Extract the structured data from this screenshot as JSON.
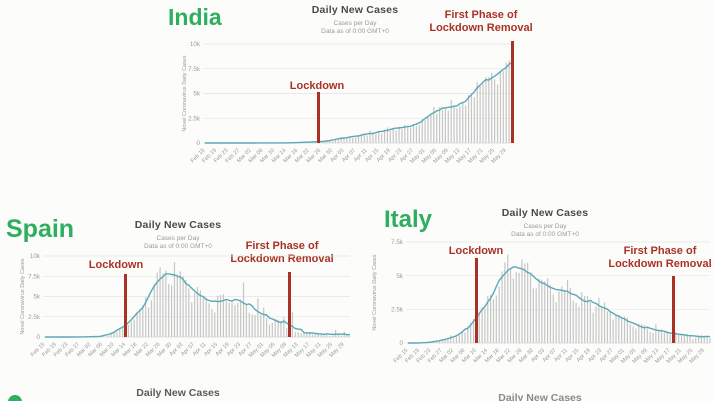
{
  "colors": {
    "country_green": "#2eae5f",
    "annotation_red": "#a93226",
    "trend_line": "#5ba8b6",
    "bars": "#c6c6c6",
    "title_text": "#4a4a4a",
    "subtitle_text": "#9a9a9a",
    "axis_text": "#9b9b9b",
    "gridline": "#e5e5e5",
    "baseline": "#d8d8d8",
    "background": "#fcfcfa"
  },
  "partial_row": {
    "left_title": "Daily New Cases",
    "right_title": "Daily New Cases"
  },
  "chart_data": [
    {
      "type": "bar",
      "country": "India",
      "title": "Daily New Cases",
      "subtitle1": "Cases per Day",
      "subtitle2": "Data as of 0:00 GMT+0",
      "ylabel": "Novel Coronavirus Daily Cases",
      "ylim": [
        0,
        10000
      ],
      "yticks": [
        {
          "v": 10000,
          "label": "10k"
        },
        {
          "v": 7500,
          "label": "7.5k"
        },
        {
          "v": 5000,
          "label": "5k"
        },
        {
          "v": 2500,
          "label": "2.5k"
        },
        {
          "v": 0,
          "label": "0"
        }
      ],
      "xtick_step": 4,
      "xtick_labels": [
        "Feb 15",
        "Feb 19",
        "Feb 23",
        "Feb 27",
        "Mar 02",
        "Mar 06",
        "Mar 10",
        "Mar 14",
        "Mar 18",
        "Mar 22",
        "Mar 26",
        "Mar 30",
        "Apr 03",
        "Apr 07",
        "Apr 11",
        "Apr 15",
        "Apr 19",
        "Apr 23",
        "Apr 27",
        "May 01",
        "May 05",
        "May 09",
        "May 13",
        "May 17",
        "May 21",
        "May 25",
        "May 29"
      ],
      "trend": "7-day moving average",
      "values": [
        0,
        0,
        0,
        0,
        0,
        0,
        0,
        0,
        0,
        0,
        0,
        0,
        0,
        0,
        0,
        3,
        2,
        23,
        2,
        1,
        3,
        5,
        5,
        12,
        8,
        11,
        8,
        20,
        13,
        12,
        15,
        24,
        26,
        60,
        86,
        76,
        102,
        106,
        88,
        121,
        160,
        188,
        140,
        227,
        146,
        437,
        336,
        601,
        579,
        609,
        567,
        508,
        565,
        813,
        871,
        854,
        758,
        1243,
        1031,
        886,
        1061,
        922,
        1371,
        1580,
        1239,
        1537,
        1292,
        1667,
        1408,
        1835,
        1607,
        1561,
        1902,
        1702,
        1801,
        2396,
        2293,
        2567,
        2952,
        3656,
        2971,
        3602,
        3344,
        3563,
        3277,
        4353,
        3604,
        3525,
        3722,
        3967,
        3787,
        4864,
        5050,
        4628,
        6154,
        5720,
        6023,
        6654,
        6665,
        7113,
        6414,
        5907,
        7246,
        7254,
        8138,
        8364,
        8789
      ],
      "annotations": [
        {
          "line1": "Lockdown",
          "line2": "",
          "day_index": 39
        },
        {
          "line1": "First Phase of",
          "line2": "Lockdown Removal",
          "day_index": 106
        }
      ]
    },
    {
      "type": "bar",
      "country": "Spain",
      "title": "Daily New Cases",
      "subtitle1": "Cases per Day",
      "subtitle2": "Data as of 0:00 GMT+0",
      "ylabel": "Novel Coronavirus Daily Cases",
      "ylim": [
        0,
        10000
      ],
      "yticks": [
        {
          "v": 10000,
          "label": "10k"
        },
        {
          "v": 7500,
          "label": "7.5k"
        },
        {
          "v": 5000,
          "label": "5k"
        },
        {
          "v": 2500,
          "label": "2.5k"
        },
        {
          "v": 0,
          "label": "0"
        }
      ],
      "xtick_step": 4,
      "xtick_labels": [
        "Feb 15",
        "Feb 19",
        "Feb 23",
        "Feb 27",
        "Mar 02",
        "Mar 06",
        "Mar 10",
        "Mar 14",
        "Mar 18",
        "Mar 22",
        "Mar 26",
        "Mar 30",
        "Apr 03",
        "Apr 07",
        "Apr 11",
        "Apr 15",
        "Apr 19",
        "Apr 23",
        "Apr 27",
        "May 01",
        "May 05",
        "May 09",
        "May 13",
        "May 17",
        "May 21",
        "May 25",
        "May 29"
      ],
      "trend": "7-day moving average",
      "values": [
        0,
        0,
        0,
        0,
        0,
        0,
        0,
        0,
        0,
        0,
        4,
        7,
        11,
        17,
        13,
        20,
        36,
        31,
        61,
        39,
        133,
        49,
        171,
        557,
        615,
        600,
        986,
        1095,
        1884,
        1515,
        1902,
        2162,
        2943,
        3431,
        3892,
        4946,
        3646,
        4517,
        6584,
        7937,
        8578,
        7871,
        8189,
        6549,
        6398,
        9222,
        7719,
        8102,
        7472,
        7026,
        6023,
        4273,
        5478,
        6180,
        5756,
        5051,
        4830,
        4167,
        3477,
        3045,
        5092,
        5183,
        5252,
        4499,
        4218,
        4266,
        3968,
        4211,
        4635,
        6740,
        3995,
        3008,
        2793,
        2706,
        4771,
        2740,
        3648,
        2312,
        1533,
        1754,
        2260,
        2144,
        1947,
        2447,
        1095,
        772,
        3046,
        594,
        639,
        506,
        643,
        604,
        421,
        295,
        431,
        518,
        482,
        361,
        246,
        135,
        132,
        859,
        231,
        182,
        658,
        271,
        96
      ],
      "annotations": [
        {
          "line1": "Lockdown",
          "line2": "",
          "day_index": 28
        },
        {
          "line1": "First Phase of",
          "line2": "Lockdown Removal",
          "day_index": 85
        }
      ]
    },
    {
      "type": "bar",
      "country": "Italy",
      "title": "Daily New Cases",
      "subtitle1": "Cases per Day",
      "subtitle2": "Data as of 0:00 GMT+0",
      "ylabel": "Novel Coronavirus Daily Cases",
      "ylim": [
        0,
        7500
      ],
      "yticks": [
        {
          "v": 7500,
          "label": "7.5k"
        },
        {
          "v": 5000,
          "label": "5k"
        },
        {
          "v": 2500,
          "label": "2.5k"
        },
        {
          "v": 0,
          "label": "0"
        }
      ],
      "xtick_step": 4,
      "xtick_labels": [
        "Feb 15",
        "Feb 19",
        "Feb 23",
        "Feb 27",
        "Mar 02",
        "Mar 06",
        "Mar 10",
        "Mar 14",
        "Mar 18",
        "Mar 22",
        "Mar 26",
        "Mar 30",
        "Apr 03",
        "Apr 07",
        "Apr 11",
        "Apr 15",
        "Apr 19",
        "Apr 23",
        "Apr 27",
        "May 01",
        "May 05",
        "May 09",
        "May 13",
        "May 17",
        "May 21",
        "May 25",
        "May 29"
      ],
      "trend": "7-day moving average",
      "values": [
        0,
        0,
        0,
        0,
        0,
        0,
        17,
        42,
        93,
        78,
        97,
        147,
        250,
        238,
        240,
        566,
        342,
        466,
        587,
        769,
        778,
        1247,
        1492,
        1797,
        977,
        2313,
        2651,
        2547,
        3497,
        3590,
        3233,
        3526,
        4207,
        5322,
        5986,
        6557,
        5560,
        4789,
        5249,
        5210,
        6203,
        5909,
        5974,
        5217,
        4050,
        4053,
        4782,
        4668,
        4585,
        4805,
        4316,
        3599,
        3039,
        3836,
        4204,
        3951,
        4694,
        4092,
        3153,
        2972,
        2667,
        3786,
        3493,
        3491,
        3047,
        2256,
        2729,
        3370,
        2646,
        3021,
        2357,
        2324,
        1739,
        2091,
        2086,
        1872,
        1965,
        1900,
        1389,
        1221,
        1075,
        1444,
        1401,
        1327,
        1083,
        802,
        744,
        1402,
        888,
        992,
        789,
        875,
        675,
        451,
        813,
        665,
        642,
        652,
        669,
        531,
        300,
        397,
        584,
        593,
        516,
        416,
        355
      ],
      "annotations": [
        {
          "line1": "Lockdown",
          "line2": "",
          "day_index": 24
        },
        {
          "line1": "First Phase of",
          "line2": "Lockdown Removal",
          "day_index": 93
        }
      ]
    }
  ]
}
